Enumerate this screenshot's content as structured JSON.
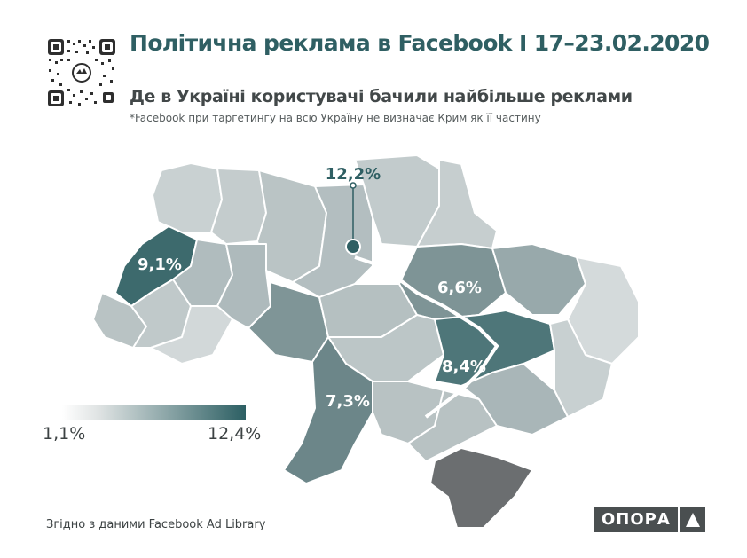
{
  "header": {
    "title": "Політична реклама в Facebook I 17–23.02.2020",
    "subtitle": "Де в Україні користувачі бачили найбільше реклами",
    "note": "*Facebook при таргетингу на всю Україну не  визначає Крим  як її частину"
  },
  "map": {
    "labels": {
      "kyiv_city": "12,2%",
      "lviv": "9,1%",
      "poltava": "6,6%",
      "dnipro": "8,4%",
      "odesa": "7,3%"
    },
    "colors": {
      "darkest": "#2f5f63",
      "dark": "#5b7f82",
      "mid": "#8ea1a3",
      "light": "#b8c3c4",
      "lightest": "#d9dedf",
      "crimea": "#6b6e70"
    }
  },
  "legend": {
    "min_label": "1,1%",
    "max_label": "12,4%"
  },
  "footer": {
    "source": "Згідно з даними  Facebook Ad Library",
    "logo": "ОПОРА"
  }
}
